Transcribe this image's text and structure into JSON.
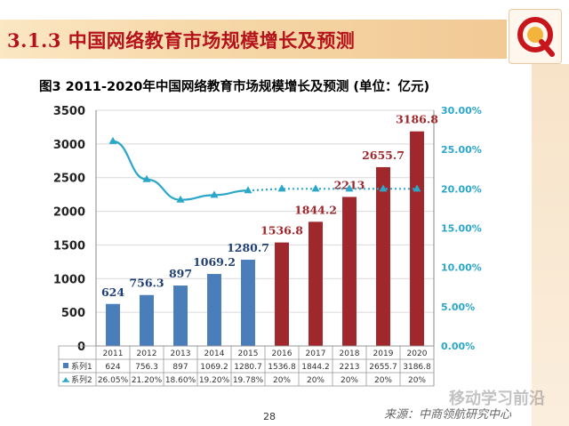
{
  "header": {
    "title": "3.1.3 中国网络教育市场规模增长及预测"
  },
  "logo": {
    "name": "q-logo-icon",
    "color": "#c8141b"
  },
  "footer": {
    "page_number": "28",
    "source": "来源：中商领航研究中心",
    "watermark": "移动学习前沿"
  },
  "chart_data": {
    "type": "bar+line",
    "title": "图3  2011-2020年中国网络教育市场规模增长及预测 (单位：亿元)",
    "categories": [
      "2011",
      "2012",
      "2013",
      "2014",
      "2015",
      "2016",
      "2017",
      "2018",
      "2019",
      "2020"
    ],
    "series": [
      {
        "name": "系列1",
        "type": "bar",
        "values": [
          624,
          756.3,
          897,
          1069.2,
          1280.7,
          1536.8,
          1844.2,
          2213,
          2655.7,
          3186.8
        ],
        "labels": [
          "624",
          "756.3",
          "897",
          "1069.2",
          "1280.7",
          "1536.8",
          "1844.2",
          "2213",
          "2655.7",
          "3186.8"
        ],
        "colors": [
          "#4a7ebb",
          "#4a7ebb",
          "#4a7ebb",
          "#4a7ebb",
          "#4a7ebb",
          "#a0282c",
          "#a0282c",
          "#a0282c",
          "#a0282c",
          "#a0282c"
        ]
      },
      {
        "name": "系列2",
        "type": "line",
        "axis": "secondary",
        "values": [
          26.05,
          21.2,
          18.6,
          19.2,
          19.78,
          20,
          20,
          20,
          20,
          20
        ],
        "table_labels": [
          "26.05%",
          "21.20%",
          "18.60%",
          "19.20%",
          "19.78%",
          "20%",
          "20%",
          "20%",
          "20%",
          "20%"
        ],
        "color": "#2aa7c9",
        "dotted_from_index": 4
      }
    ],
    "y_left": {
      "min": 0,
      "max": 3500,
      "ticks": [
        "0",
        "500",
        "1000",
        "1500",
        "2000",
        "2500",
        "3000",
        "3500"
      ]
    },
    "y_right": {
      "min": 0,
      "max": 30,
      "ticks": [
        "0.00%",
        "5.00%",
        "10.00%",
        "15.00%",
        "20.00%",
        "25.00%",
        "30.00%"
      ]
    },
    "label_colors": {
      "blue": "#1f3f75",
      "red": "#a0282c",
      "right_axis": "#2aa7c9"
    },
    "grid": true,
    "legend": "data-table"
  }
}
